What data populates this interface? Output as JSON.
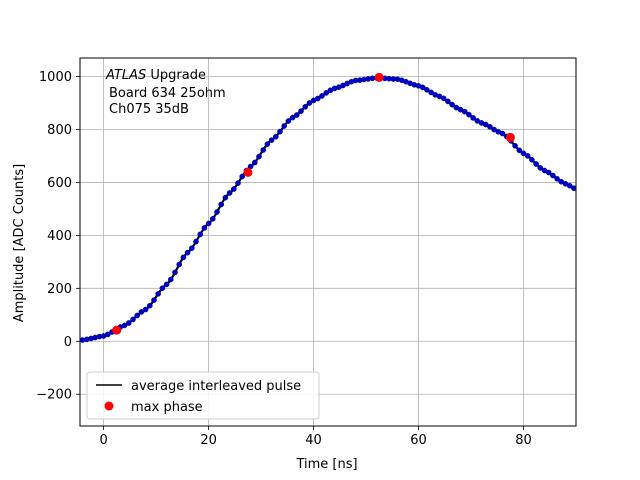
{
  "chart_data": {
    "type": "scatter",
    "annotation": {
      "line1_italic": "ATLAS",
      "line1_rest": " Upgrade",
      "line2": "Board 634 25ohm",
      "line3": "Ch075 35dB"
    },
    "xlabel": "Time [ns]",
    "ylabel": "Amplitude [ADC Counts]",
    "xlim": [
      -4.5,
      90
    ],
    "ylim": [
      -320,
      1070
    ],
    "xticks": [
      0,
      20,
      40,
      60,
      80
    ],
    "yticks": [
      -200,
      0,
      200,
      400,
      600,
      800,
      1000
    ],
    "grid": true,
    "legend": {
      "placement": "lower-left",
      "entries": [
        {
          "label": "average interleaved pulse",
          "marker": "line",
          "color": "#000000"
        },
        {
          "label": "max phase",
          "marker": "dot",
          "color": "#ff0000"
        }
      ]
    },
    "pulse": {
      "name": "average interleaved pulse",
      "line_color": "#000000",
      "marker_color": "#0000cc",
      "x": [
        -4,
        0,
        4,
        8,
        12,
        16,
        20,
        24,
        28,
        32,
        36,
        40,
        44,
        48,
        52,
        56,
        60,
        64,
        68,
        72,
        76,
        80,
        84,
        88,
        90
      ],
      "y": [
        5,
        20,
        60,
        120,
        215,
        335,
        445,
        560,
        660,
        760,
        845,
        910,
        955,
        985,
        995,
        990,
        965,
        925,
        875,
        825,
        785,
        710,
        645,
        595,
        575
      ]
    },
    "max_phase": {
      "name": "max phase",
      "color": "#ff0000",
      "x": [
        2.5,
        27.5,
        52.5,
        77.5
      ],
      "y": [
        42,
        638,
        997,
        770
      ]
    }
  }
}
